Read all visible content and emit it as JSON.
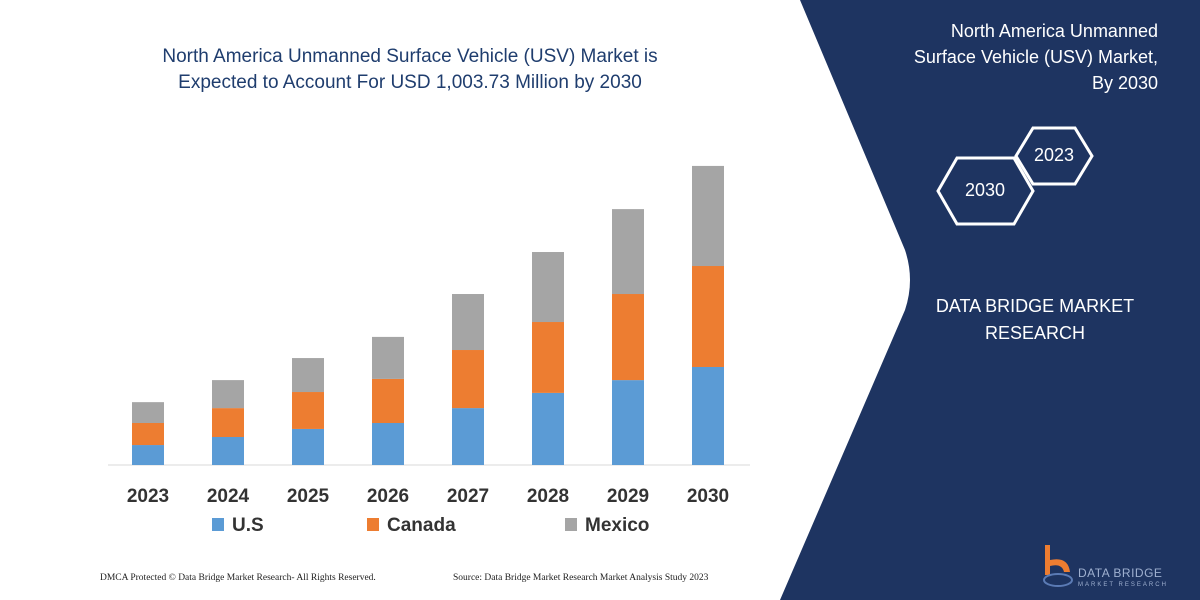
{
  "header": {
    "title_line1": "North America Unmanned Surface Vehicle (USV) Market is",
    "title_line2": "Expected to Account For USD 1,003.73 Million by 2030"
  },
  "side_panel": {
    "title_line1": "North America Unmanned",
    "title_line2": "Surface Vehicle (USV) Market,",
    "title_line3": "By 2030",
    "hex_2023": "2023",
    "hex_2030": "2030",
    "brand_line1": "DATA BRIDGE MARKET",
    "brand_line2": "RESEARCH",
    "logo_text": "DATA BRIDGE",
    "logo_sub": "MARKET RESEARCH",
    "color": "#1e3461"
  },
  "footer": {
    "copyright": "DMCA Protected © Data Bridge Market Research- All Rights Reserved.",
    "source": "Source: Data Bridge Market Research  Market Analysis Study 2023"
  },
  "chart_data": {
    "type": "bar",
    "stacked": true,
    "categories": [
      "2023",
      "2024",
      "2025",
      "2026",
      "2027",
      "2028",
      "2029",
      "2030"
    ],
    "series": [
      {
        "name": "U.S",
        "color": "#5b9bd5",
        "values": [
          67,
          94,
          121,
          141,
          191,
          242,
          285,
          329
        ]
      },
      {
        "name": "Canada",
        "color": "#ed7d31",
        "values": [
          74,
          97,
          124,
          148,
          195,
          238,
          289,
          339
        ]
      },
      {
        "name": "Mexico",
        "color": "#a5a5a5",
        "values": [
          70,
          94,
          114,
          141,
          188,
          235,
          285,
          336
        ]
      }
    ],
    "ylim": [
      0,
      1003.73
    ],
    "grid": false,
    "legend": "bottom"
  }
}
